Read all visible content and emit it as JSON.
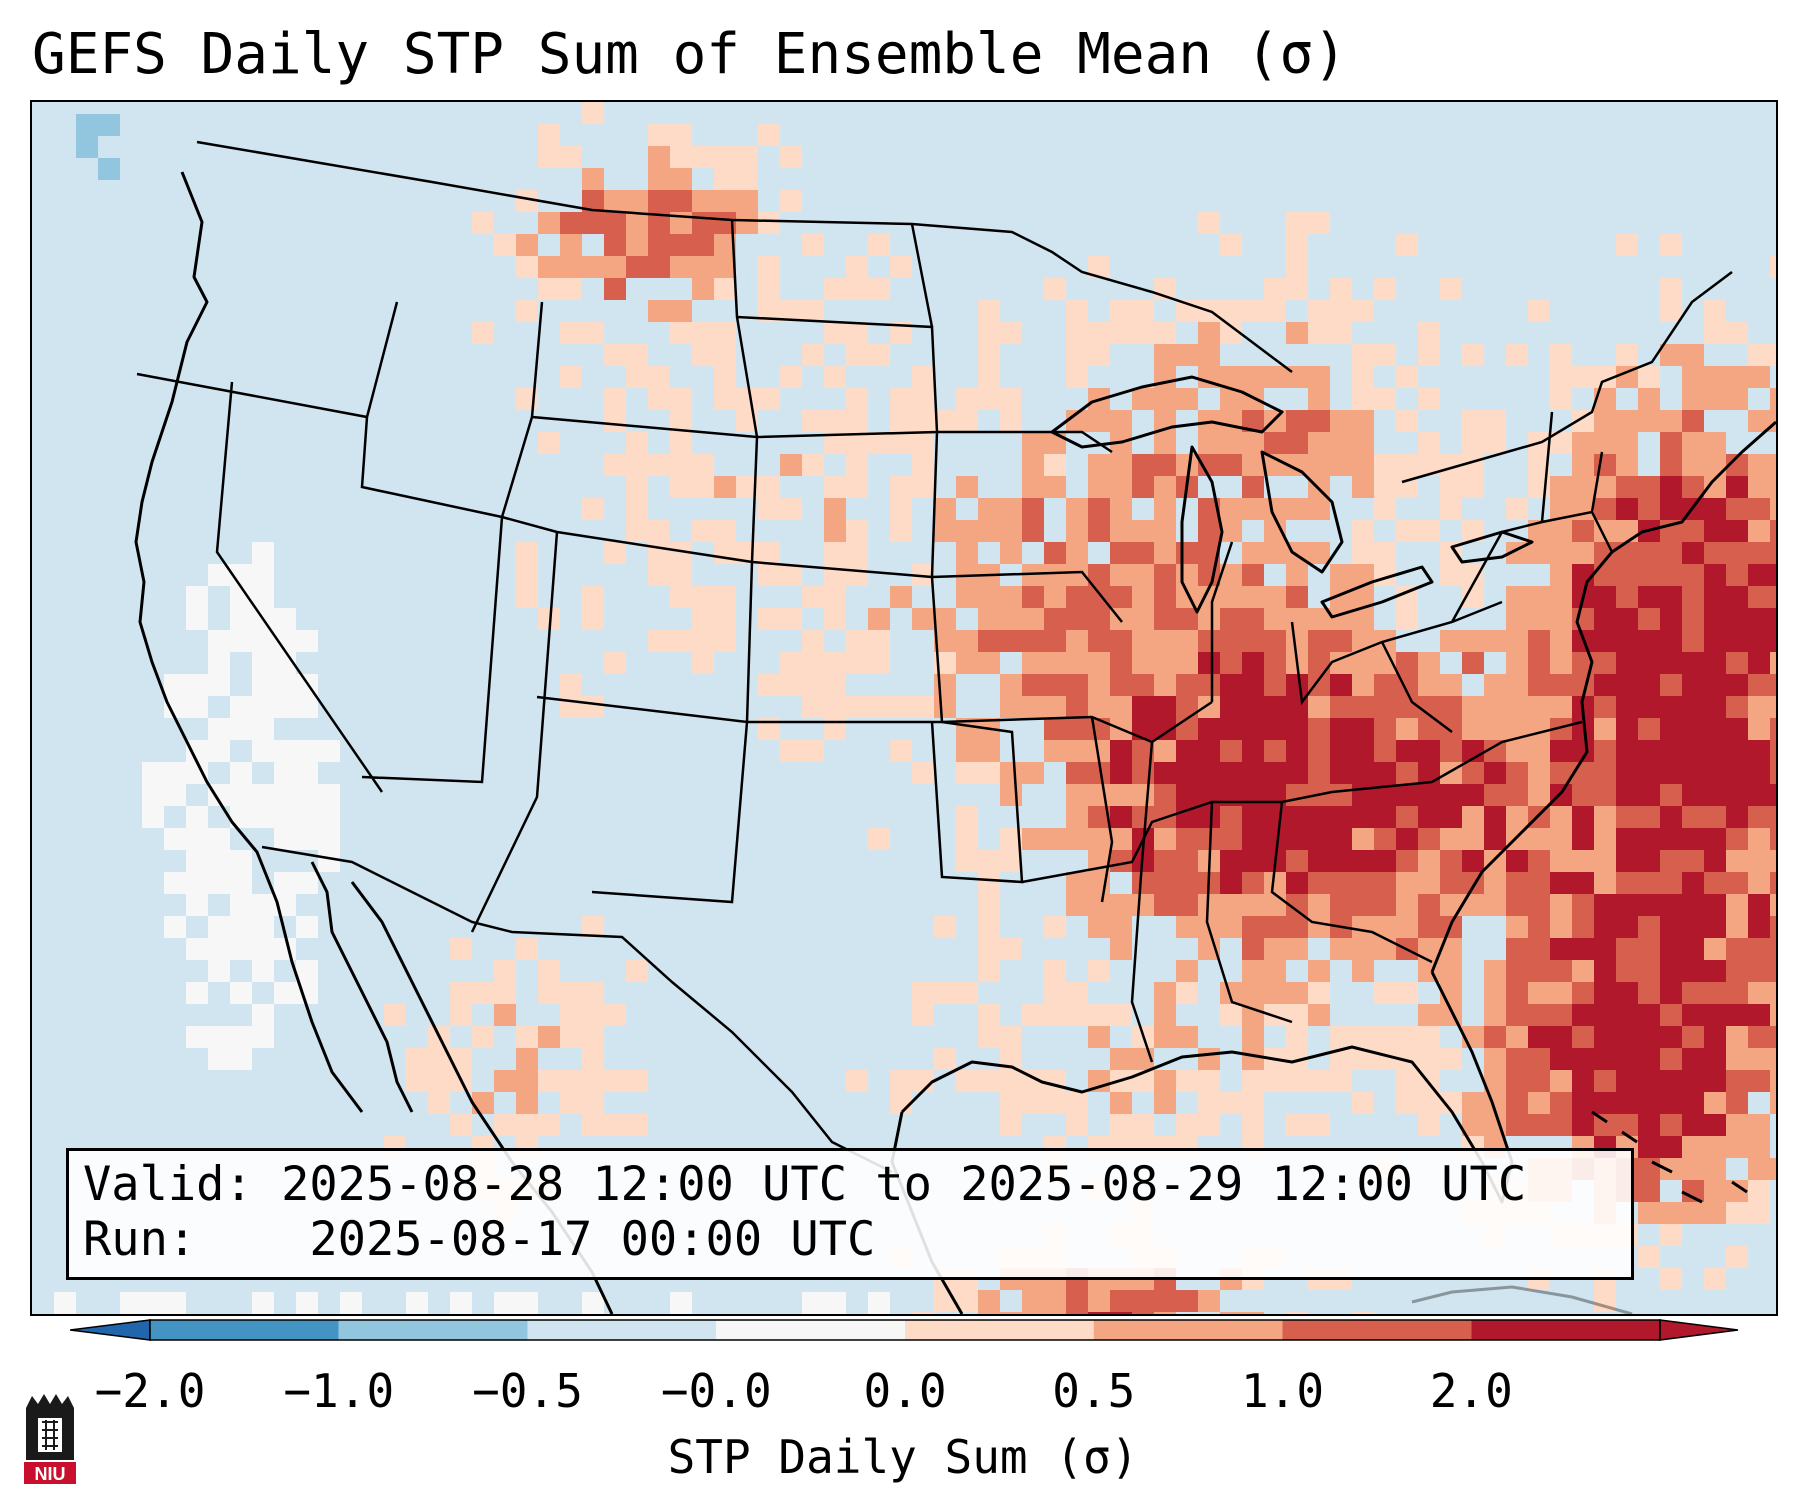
{
  "title": "GEFS Daily STP Sum of Ensemble Mean (σ)",
  "infobox": {
    "valid_label": "Valid:",
    "valid_value": "2025-08-28 12:00 UTC to 2025-08-29 12:00 UTC",
    "run_label": "Run:",
    "run_value": "2025-08-17 00:00 UTC"
  },
  "colorbar": {
    "label": "STP Daily Sum (σ)",
    "ticks": [
      "−2.0",
      "−1.0",
      "−0.5",
      "−0.0",
      "0.0",
      "0.5",
      "1.0",
      "2.0"
    ],
    "colors": [
      "#4393c3",
      "#92c5de",
      "#d1e5f0",
      "#f7f7f7",
      "#fddbc7",
      "#f4a582",
      "#d6604d",
      "#b2182b"
    ],
    "under_color": "#2166ac",
    "over_color": "#b2182b"
  },
  "map": {
    "background_color": "#d1e5f0",
    "regions": [
      {
        "name": "southeast-high-values",
        "level": "2.0"
      },
      {
        "name": "atlantic-high-values",
        "level": "2.0"
      },
      {
        "name": "montana-elevated",
        "level": "1.0"
      },
      {
        "name": "midwest-elevated",
        "level": "0.5"
      },
      {
        "name": "california-coast-neutral",
        "level": "-0.0"
      }
    ]
  },
  "logo": {
    "text": "NIU"
  }
}
